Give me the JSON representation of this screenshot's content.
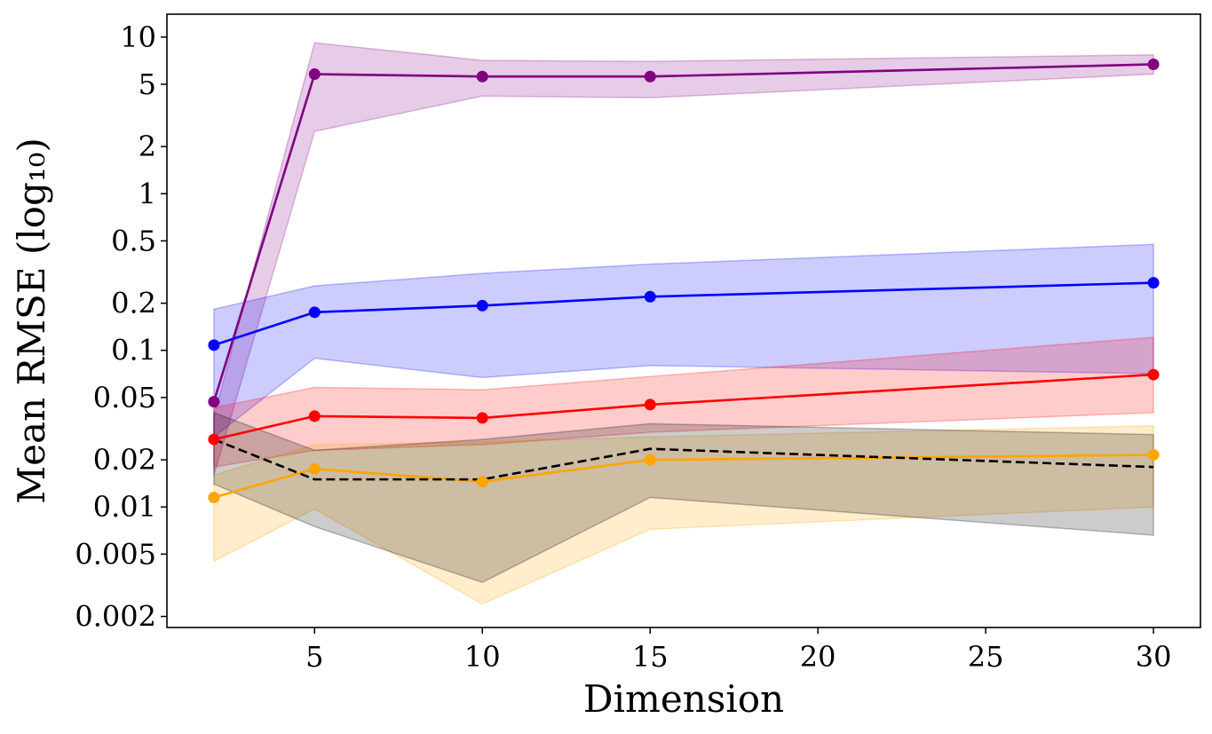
{
  "chart_data": {
    "type": "line",
    "xlabel": "Dimension",
    "ylabel": "Mean RMSE (log₁₀)",
    "yscale": "log",
    "xlim": [
      0.6,
      31.4
    ],
    "ylim": [
      0.0017,
      14
    ],
    "xticks": [
      {
        "value": 5,
        "label": "5"
      },
      {
        "value": 10,
        "label": "10"
      },
      {
        "value": 15,
        "label": "15"
      },
      {
        "value": 20,
        "label": "20"
      },
      {
        "value": 25,
        "label": "25"
      },
      {
        "value": 30,
        "label": "30"
      }
    ],
    "yticks": [
      {
        "value": 10,
        "label": "10"
      },
      {
        "value": 5,
        "label": "5"
      },
      {
        "value": 2,
        "label": "2"
      },
      {
        "value": 1,
        "label": "1"
      },
      {
        "value": 0.5,
        "label": "0.5"
      },
      {
        "value": 0.2,
        "label": "0.2"
      },
      {
        "value": 0.1,
        "label": "0.1"
      },
      {
        "value": 0.05,
        "label": "0.05"
      },
      {
        "value": 0.02,
        "label": "0.02"
      },
      {
        "value": 0.01,
        "label": "0.01"
      },
      {
        "value": 0.005,
        "label": "0.005"
      },
      {
        "value": 0.002,
        "label": "0.002"
      }
    ],
    "grid": false,
    "legend": false,
    "x": [
      2,
      5,
      10,
      15,
      30
    ],
    "series": [
      {
        "key": "purple",
        "color": "#800080",
        "line": "solid",
        "markers": true,
        "values": [
          0.047,
          5.8,
          5.6,
          5.6,
          6.7
        ],
        "band_upper": [
          0.038,
          9.2,
          7.1,
          7.0,
          7.7
        ],
        "band_lower": [
          0.016,
          2.5,
          4.2,
          4.1,
          5.8
        ]
      },
      {
        "key": "blue",
        "color": "#0000ff",
        "line": "solid",
        "markers": true,
        "values": [
          0.108,
          0.175,
          0.193,
          0.22,
          0.27
        ],
        "band_upper": [
          0.183,
          0.258,
          0.31,
          0.355,
          0.475
        ],
        "band_lower": [
          0.028,
          0.089,
          0.067,
          0.08,
          0.071
        ]
      },
      {
        "key": "red",
        "color": "#ff0000",
        "line": "solid",
        "markers": true,
        "values": [
          0.027,
          0.038,
          0.037,
          0.045,
          0.07
        ],
        "band_upper": [
          0.043,
          0.058,
          0.056,
          0.068,
          0.121
        ],
        "band_lower": [
          0.018,
          0.023,
          0.025,
          0.03,
          0.04
        ]
      },
      {
        "key": "orange",
        "color": "#ffa500",
        "line": "solid",
        "markers": true,
        "values": [
          0.0115,
          0.0175,
          0.0145,
          0.02,
          0.0215
        ],
        "band_upper": [
          0.016,
          0.025,
          0.026,
          0.028,
          0.033
        ],
        "band_lower": [
          0.0045,
          0.0097,
          0.0024,
          0.0072,
          0.01
        ]
      },
      {
        "key": "black",
        "color": "#000000",
        "line": "dashed",
        "markers": false,
        "values": [
          0.027,
          0.015,
          0.015,
          0.0235,
          0.018
        ],
        "band_upper": [
          0.04,
          0.023,
          0.027,
          0.034,
          0.029
        ],
        "band_lower": [
          0.014,
          0.0075,
          0.0033,
          0.0115,
          0.0066
        ]
      }
    ]
  }
}
